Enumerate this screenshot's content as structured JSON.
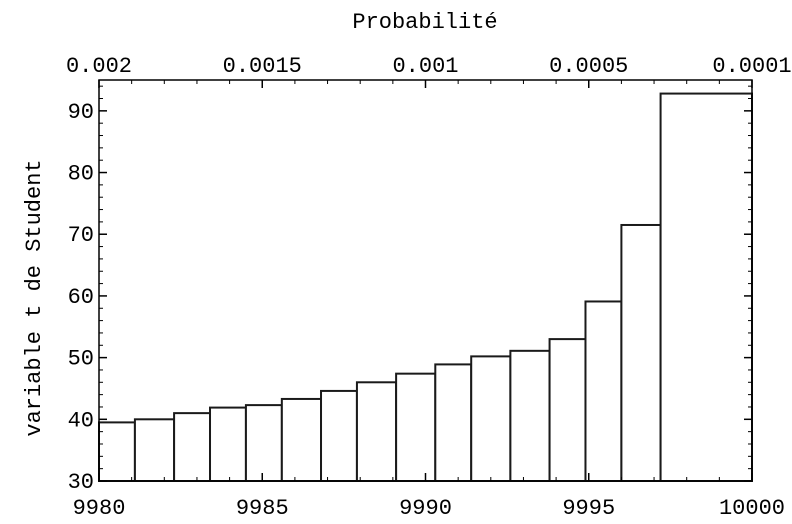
{
  "chart_data": {
    "type": "bar",
    "title": "",
    "xlabel": "",
    "ylabel": "variable t de Student",
    "x2label": "Probabilité",
    "xlim": [
      9980,
      10000
    ],
    "ylim": [
      30,
      95
    ],
    "x_ticks": [
      9980,
      9985,
      9990,
      9995,
      10000
    ],
    "x_tick_labels": [
      "9980",
      "9985",
      "9990",
      "9995",
      "10000"
    ],
    "y_ticks": [
      30,
      40,
      50,
      60,
      70,
      80,
      90
    ],
    "y_tick_labels": [
      "30",
      "40",
      "50",
      "60",
      "70",
      "80",
      "90"
    ],
    "top_ticks": [
      9980,
      9985,
      9990,
      9995,
      10000
    ],
    "top_tick_labels": [
      "0.002",
      "0.0015",
      "0.001",
      "0.0005",
      "0.0001"
    ],
    "grid": false,
    "bars": [
      {
        "x0": 9980.0,
        "x1": 9981.1,
        "value": 39.5
      },
      {
        "x0": 9981.1,
        "x1": 9982.3,
        "value": 40.0
      },
      {
        "x0": 9982.3,
        "x1": 9983.4,
        "value": 41.0
      },
      {
        "x0": 9983.4,
        "x1": 9984.5,
        "value": 41.9
      },
      {
        "x0": 9984.5,
        "x1": 9985.6,
        "value": 42.3
      },
      {
        "x0": 9985.6,
        "x1": 9986.8,
        "value": 43.3
      },
      {
        "x0": 9986.8,
        "x1": 9987.9,
        "value": 44.6
      },
      {
        "x0": 9987.9,
        "x1": 9989.1,
        "value": 46.0
      },
      {
        "x0": 9989.1,
        "x1": 9990.3,
        "value": 47.4
      },
      {
        "x0": 9990.3,
        "x1": 9991.4,
        "value": 48.9
      },
      {
        "x0": 9991.4,
        "x1": 9992.6,
        "value": 50.2
      },
      {
        "x0": 9992.6,
        "x1": 9993.8,
        "value": 51.1
      },
      {
        "x0": 9993.8,
        "x1": 9994.9,
        "value": 53.0
      },
      {
        "x0": 9994.9,
        "x1": 9996.0,
        "value": 59.1
      },
      {
        "x0": 9996.0,
        "x1": 9997.2,
        "value": 71.5
      },
      {
        "x0": 9997.2,
        "x1": 10000.0,
        "value": 92.8
      }
    ],
    "colors": {
      "bar_fill": "#ffffff",
      "bar_stroke": "#1a1a1a",
      "frame": "#000000"
    }
  }
}
